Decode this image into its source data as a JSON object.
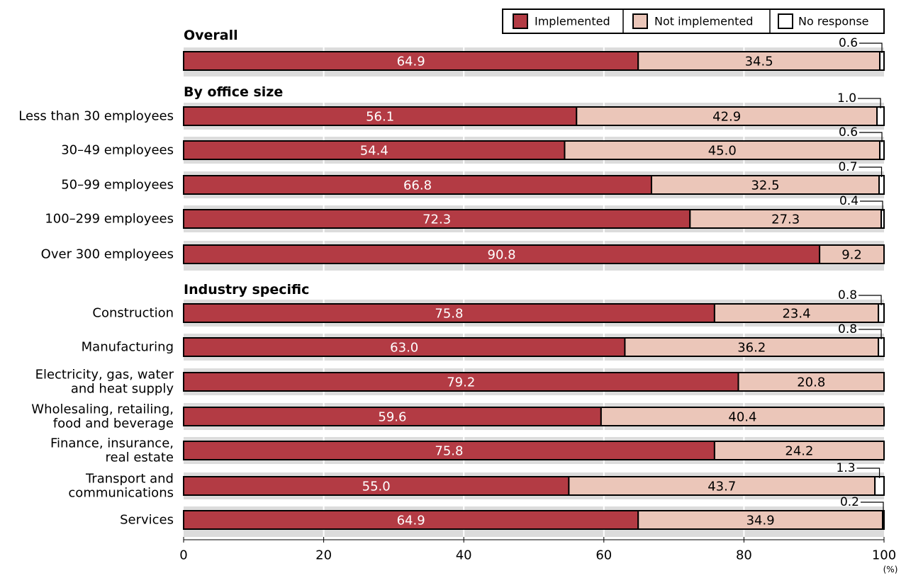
{
  "chart_data": {
    "type": "bar",
    "orientation": "horizontal",
    "stacked": true,
    "xlim": [
      0,
      100
    ],
    "x_ticks": [
      "0",
      "20",
      "40",
      "60",
      "80",
      "100"
    ],
    "x_unit": "(%)",
    "grid": true,
    "legend_position": "top-right",
    "series": [
      {
        "name": "Implemented",
        "color": "#b33b44"
      },
      {
        "name": "Not implemented",
        "color": "#ebc6b9"
      },
      {
        "name": "No response",
        "color": "#ffffff"
      }
    ],
    "groups": [
      {
        "title": "Overall",
        "rows": [
          {
            "label": [],
            "values": [
              "64.9",
              "34.5",
              "0.6"
            ]
          }
        ]
      },
      {
        "title": "By office size",
        "rows": [
          {
            "label": [
              "Less than 30 employees"
            ],
            "values": [
              "56.1",
              "42.9",
              "1.0"
            ]
          },
          {
            "label": [
              "30–49 employees"
            ],
            "values": [
              "54.4",
              "45.0",
              "0.6"
            ]
          },
          {
            "label": [
              "50–99 employees"
            ],
            "values": [
              "66.8",
              "32.5",
              "0.7"
            ]
          },
          {
            "label": [
              "100–299 employees"
            ],
            "values": [
              "72.3",
              "27.3",
              "0.4"
            ]
          },
          {
            "label": [
              "Over 300 employees"
            ],
            "values": [
              "90.8",
              "9.2"
            ]
          }
        ]
      },
      {
        "title": "Industry specific",
        "rows": [
          {
            "label": [
              "Construction"
            ],
            "values": [
              "75.8",
              "23.4",
              "0.8"
            ]
          },
          {
            "label": [
              "Manufacturing"
            ],
            "values": [
              "63.0",
              "36.2",
              "0.8"
            ]
          },
          {
            "label": [
              "Electricity, gas, water",
              "and heat supply"
            ],
            "values": [
              "79.2",
              "20.8"
            ]
          },
          {
            "label": [
              "Wholesaling, retailing,",
              "food and beverage"
            ],
            "values": [
              "59.6",
              "40.4"
            ]
          },
          {
            "label": [
              "Finance, insurance,",
              "real estate"
            ],
            "values": [
              "75.8",
              "24.2"
            ]
          },
          {
            "label": [
              "Transport and",
              "communications"
            ],
            "values": [
              "55.0",
              "43.7",
              "1.3"
            ]
          },
          {
            "label": [
              "Services"
            ],
            "values": [
              "64.9",
              "34.9",
              "0.2"
            ]
          }
        ]
      }
    ]
  }
}
